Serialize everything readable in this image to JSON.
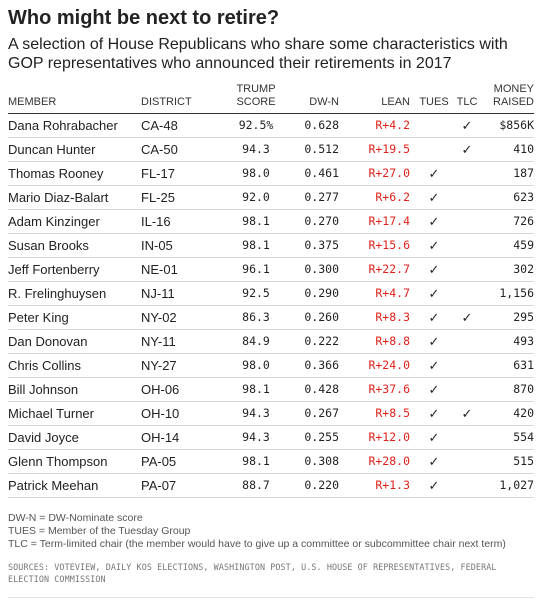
{
  "title": "Who might be next to retire?",
  "subtitle": "A selection of House Republicans who share some characteristics with GOP representatives who announced their retirements in 2017",
  "columns": {
    "member": "MEMBER",
    "district": "DISTRICT",
    "trump_line1": "TRUMP",
    "trump_line2": "SCORE",
    "dwn": "DW-N",
    "lean": "LEAN",
    "tues": "TUES",
    "tlc": "TLC",
    "money_line1": "MONEY",
    "money_line2": "RAISED"
  },
  "rows": [
    {
      "member": "Dana Rohrabacher",
      "district": "CA-48",
      "trump": "92.5%",
      "dwn": "0.628",
      "lean": "R+4.2",
      "tues": "",
      "tlc": "✓",
      "money": "$856K"
    },
    {
      "member": "Duncan Hunter",
      "district": "CA-50",
      "trump": "94.3",
      "dwn": "0.512",
      "lean": "R+19.5",
      "tues": "",
      "tlc": "✓",
      "money": "410"
    },
    {
      "member": "Thomas Rooney",
      "district": "FL-17",
      "trump": "98.0",
      "dwn": "0.461",
      "lean": "R+27.0",
      "tues": "✓",
      "tlc": "",
      "money": "187"
    },
    {
      "member": "Mario Diaz-Balart",
      "district": "FL-25",
      "trump": "92.0",
      "dwn": "0.277",
      "lean": "R+6.2",
      "tues": "✓",
      "tlc": "",
      "money": "623"
    },
    {
      "member": "Adam Kinzinger",
      "district": "IL-16",
      "trump": "98.1",
      "dwn": "0.270",
      "lean": "R+17.4",
      "tues": "✓",
      "tlc": "",
      "money": "726"
    },
    {
      "member": "Susan Brooks",
      "district": "IN-05",
      "trump": "98.1",
      "dwn": "0.375",
      "lean": "R+15.6",
      "tues": "✓",
      "tlc": "",
      "money": "459"
    },
    {
      "member": "Jeff Fortenberry",
      "district": "NE-01",
      "trump": "96.1",
      "dwn": "0.300",
      "lean": "R+22.7",
      "tues": "✓",
      "tlc": "",
      "money": "302"
    },
    {
      "member": "R. Frelinghuysen",
      "district": "NJ-11",
      "trump": "92.5",
      "dwn": "0.290",
      "lean": "R+4.7",
      "tues": "✓",
      "tlc": "",
      "money": "1,156"
    },
    {
      "member": "Peter King",
      "district": "NY-02",
      "trump": "86.3",
      "dwn": "0.260",
      "lean": "R+8.3",
      "tues": "✓",
      "tlc": "✓",
      "money": "295"
    },
    {
      "member": "Dan Donovan",
      "district": "NY-11",
      "trump": "84.9",
      "dwn": "0.222",
      "lean": "R+8.8",
      "tues": "✓",
      "tlc": "",
      "money": "493"
    },
    {
      "member": "Chris Collins",
      "district": "NY-27",
      "trump": "98.0",
      "dwn": "0.366",
      "lean": "R+24.0",
      "tues": "✓",
      "tlc": "",
      "money": "631"
    },
    {
      "member": "Bill Johnson",
      "district": "OH-06",
      "trump": "98.1",
      "dwn": "0.428",
      "lean": "R+37.6",
      "tues": "✓",
      "tlc": "",
      "money": "870"
    },
    {
      "member": "Michael Turner",
      "district": "OH-10",
      "trump": "94.3",
      "dwn": "0.267",
      "lean": "R+8.5",
      "tues": "✓",
      "tlc": "✓",
      "money": "420"
    },
    {
      "member": "David Joyce",
      "district": "OH-14",
      "trump": "94.3",
      "dwn": "0.255",
      "lean": "R+12.0",
      "tues": "✓",
      "tlc": "",
      "money": "554"
    },
    {
      "member": "Glenn Thompson",
      "district": "PA-05",
      "trump": "98.1",
      "dwn": "0.308",
      "lean": "R+28.0",
      "tues": "✓",
      "tlc": "",
      "money": "515"
    },
    {
      "member": "Patrick Meehan",
      "district": "PA-07",
      "trump": "88.7",
      "dwn": "0.220",
      "lean": "R+1.3",
      "tues": "✓",
      "tlc": "",
      "money": "1,027"
    }
  ],
  "footnotes": [
    "DW-N = DW-Nominate score",
    "TUES = Member of the Tuesday Group",
    "TLC = Term-limited chair (the member would have to give up a committee or subcommittee chair next term)"
  ],
  "sources": "SOURCES: VOTEVIEW, DAILY KOS ELECTIONS, WASHINGTON POST, U.S. HOUSE OF REPRESENTATIVES, FEDERAL ELECTION COMMISSION",
  "colors": {
    "lean_red": "#e0221a",
    "text": "#222222",
    "rule": "#d6d6d6"
  }
}
